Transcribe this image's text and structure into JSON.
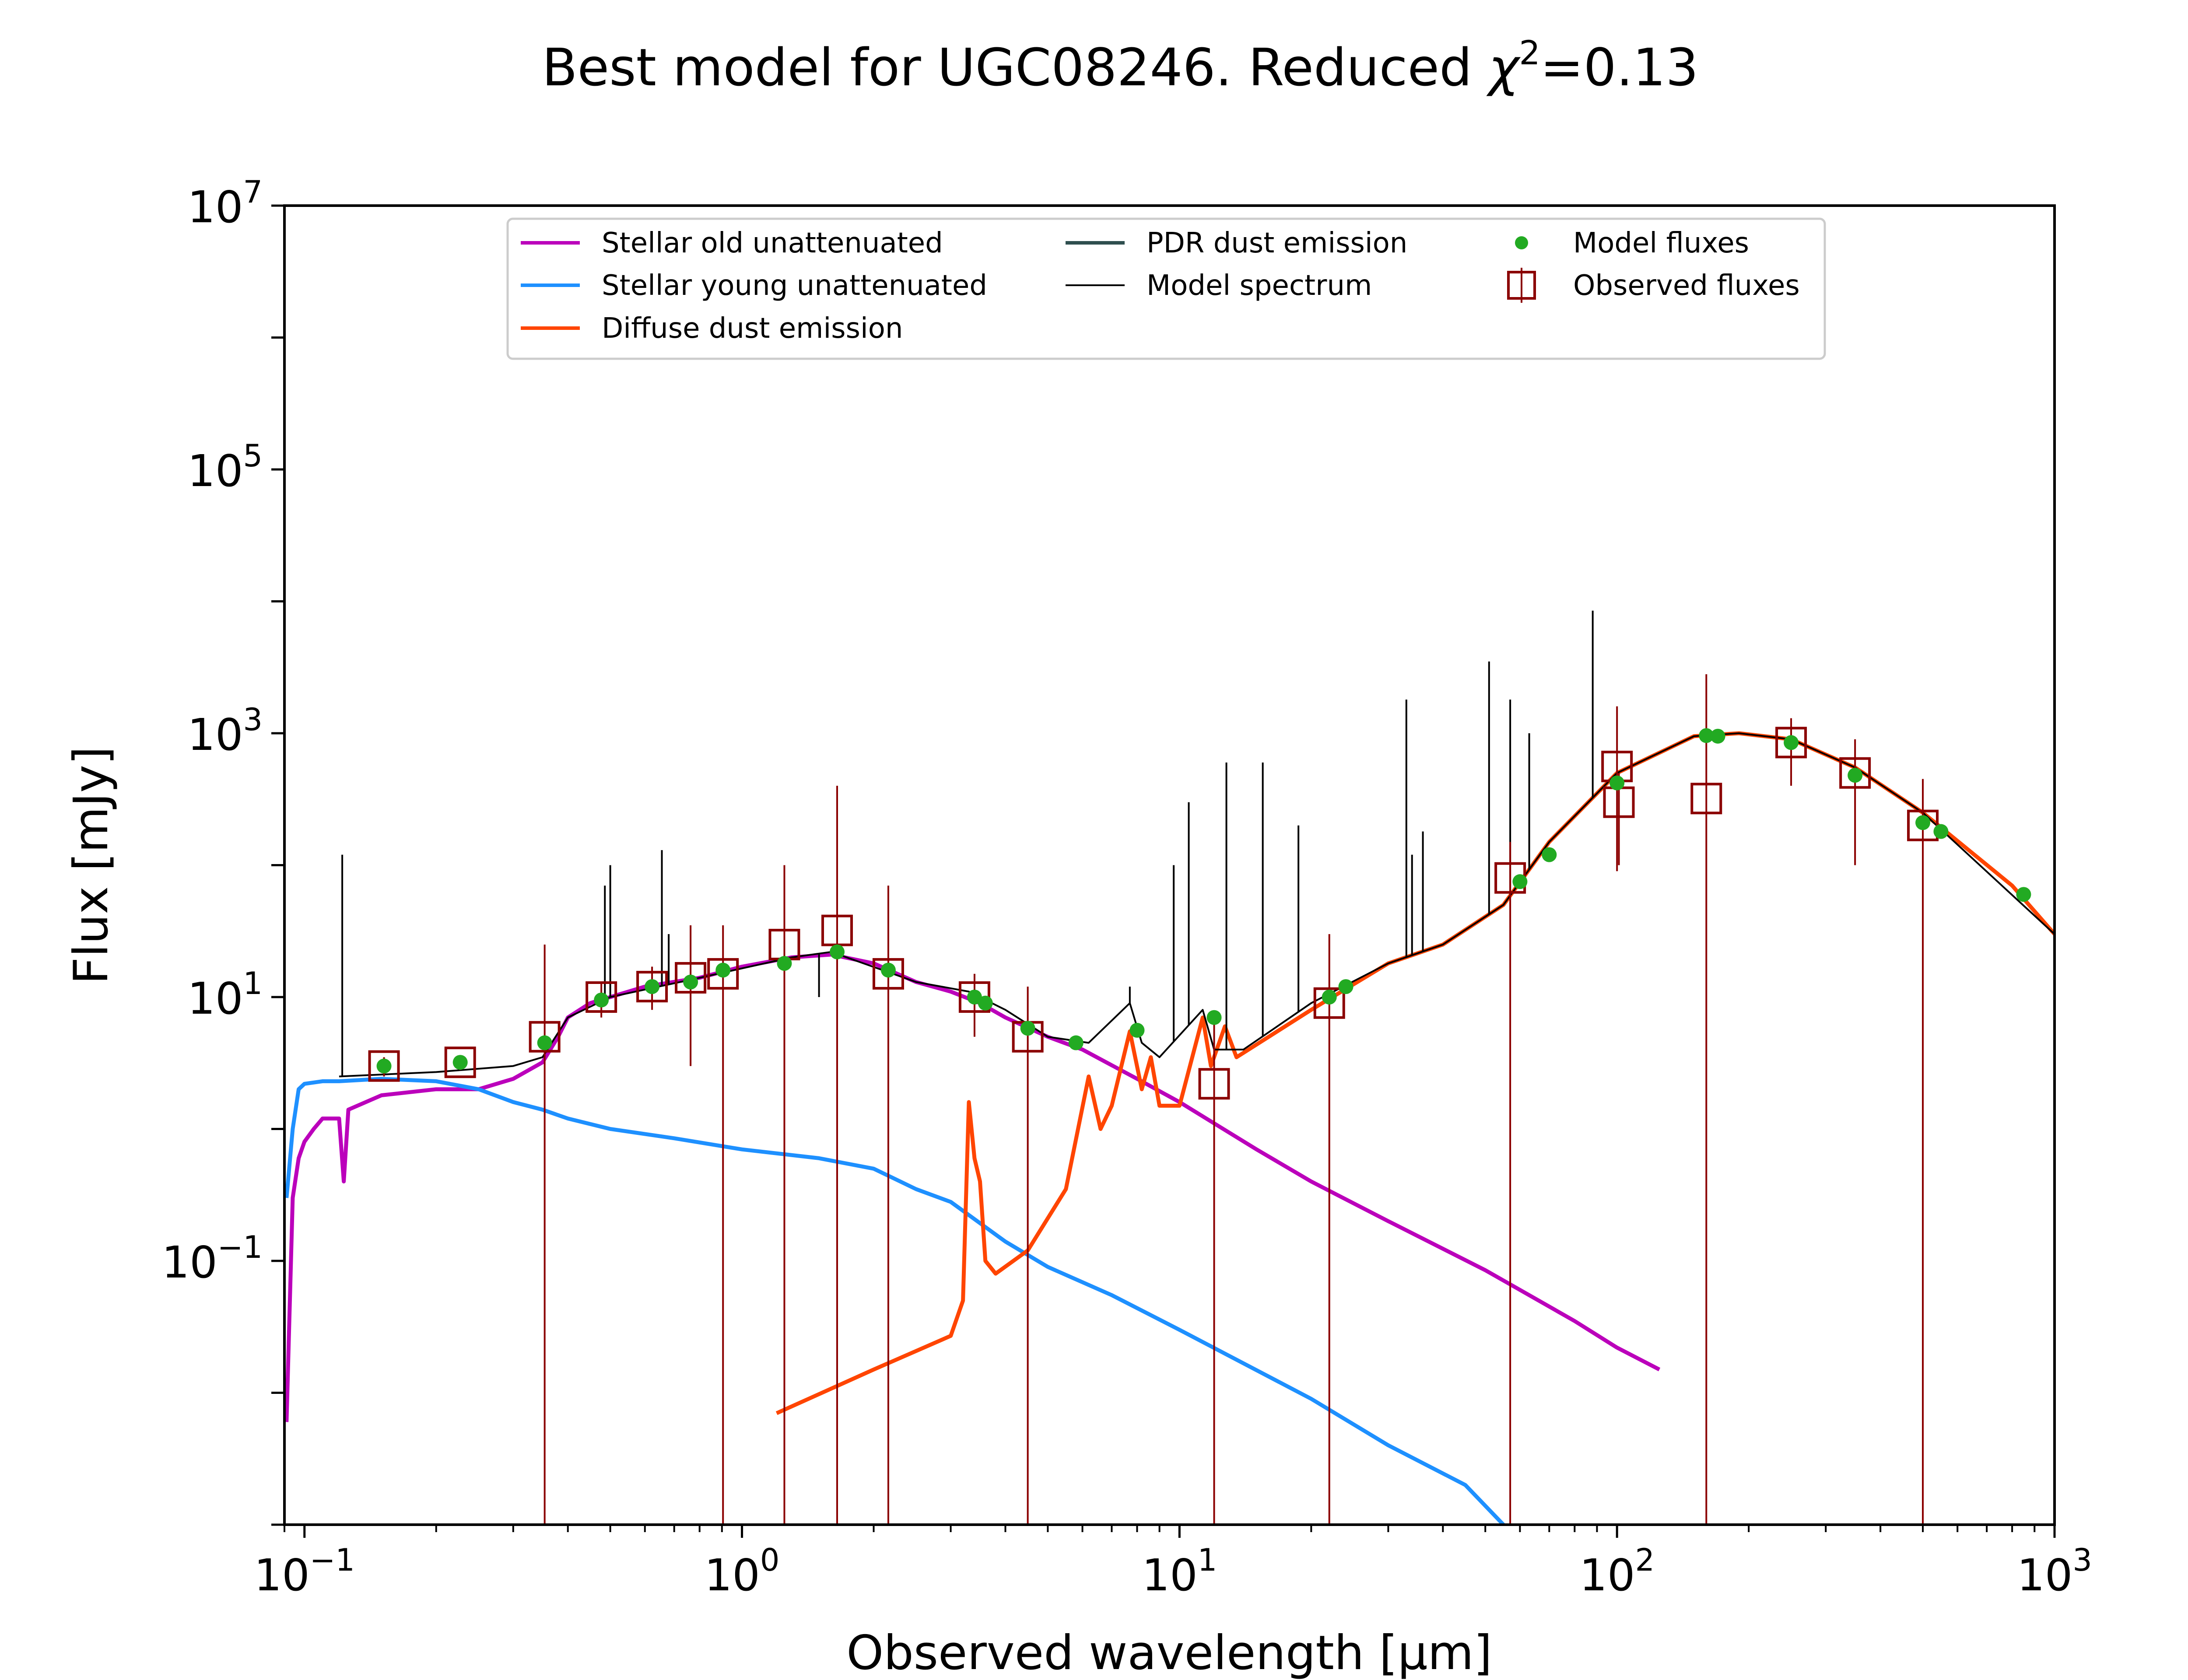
{
  "title": {
    "main": "Best model for UGC08246. Reduced ",
    "chi": "χ",
    "sup": "2",
    "value": "=0.13"
  },
  "chart_data": {
    "type": "line",
    "title": "Best model for UGC08246. Reduced χ²=0.13",
    "xlabel": "Observed wavelength [μm]",
    "ylabel": "Flux [mJy]",
    "x_scale": "log",
    "y_scale": "log",
    "xlim": [
      0.09,
      1000
    ],
    "ylim": [
      0.001,
      10000000
    ],
    "x_ticks": [
      {
        "base": "10",
        "exp": "−1"
      },
      {
        "base": "10",
        "exp": "0"
      },
      {
        "base": "10",
        "exp": "1"
      },
      {
        "base": "10",
        "exp": "2"
      },
      {
        "base": "10",
        "exp": "3"
      }
    ],
    "y_ticks": [
      {
        "base": "10",
        "exp": "−1",
        "value": 0.1
      },
      {
        "base": "10",
        "exp": "1",
        "value": 10
      },
      {
        "base": "10",
        "exp": "3",
        "value": 1000
      },
      {
        "base": "10",
        "exp": "5",
        "value": 100000
      },
      {
        "base": "10",
        "exp": "7",
        "value": 10000000
      }
    ],
    "grid": false,
    "legend_position": "top-center",
    "legend": [
      {
        "label": "Stellar old unattenuated",
        "kind": "line",
        "color": "#bb00bb"
      },
      {
        "label": "Stellar young unattenuated",
        "kind": "line",
        "color": "#1e90ff"
      },
      {
        "label": "Diffuse dust emission",
        "kind": "line",
        "color": "#ff4500"
      },
      {
        "label": "PDR dust emission",
        "kind": "line",
        "color": "#2f4f4f"
      },
      {
        "label": "Model spectrum",
        "kind": "thinline",
        "color": "#000000"
      },
      {
        "label": "Model fluxes",
        "kind": "dot",
        "color": "#22aa22"
      },
      {
        "label": "Observed fluxes",
        "kind": "square",
        "color": "#8b0000"
      }
    ],
    "series": [
      {
        "name": "Stellar old unattenuated",
        "color": "#bb00bb",
        "points": [
          [
            0.091,
            0.006
          ],
          [
            0.094,
            0.3
          ],
          [
            0.097,
            0.6
          ],
          [
            0.1,
            0.8
          ],
          [
            0.105,
            1.0
          ],
          [
            0.11,
            1.2
          ],
          [
            0.12,
            1.2
          ],
          [
            0.123,
            0.4
          ],
          [
            0.126,
            1.4
          ],
          [
            0.15,
            1.8
          ],
          [
            0.2,
            2.0
          ],
          [
            0.25,
            2.0
          ],
          [
            0.3,
            2.4
          ],
          [
            0.35,
            3.2
          ],
          [
            0.38,
            5
          ],
          [
            0.4,
            7
          ],
          [
            0.45,
            9
          ],
          [
            0.5,
            10
          ],
          [
            0.6,
            12
          ],
          [
            0.8,
            14
          ],
          [
            1.0,
            17
          ],
          [
            1.3,
            20
          ],
          [
            1.6,
            21
          ],
          [
            2.0,
            18
          ],
          [
            2.5,
            13
          ],
          [
            3.0,
            11
          ],
          [
            3.5,
            9
          ],
          [
            4.0,
            7
          ],
          [
            5,
            5
          ],
          [
            6,
            4
          ],
          [
            8,
            2.4
          ],
          [
            10,
            1.6
          ],
          [
            15,
            0.7
          ],
          [
            20,
            0.4
          ],
          [
            30,
            0.2
          ],
          [
            50,
            0.085
          ],
          [
            80,
            0.035
          ],
          [
            100,
            0.022
          ],
          [
            125,
            0.015
          ]
        ]
      },
      {
        "name": "Stellar young unattenuated",
        "color": "#1e90ff",
        "points": [
          [
            0.091,
            0.3
          ],
          [
            0.094,
            1.0
          ],
          [
            0.097,
            2.0
          ],
          [
            0.1,
            2.2
          ],
          [
            0.11,
            2.3
          ],
          [
            0.12,
            2.3
          ],
          [
            0.15,
            2.4
          ],
          [
            0.2,
            2.3
          ],
          [
            0.25,
            2.0
          ],
          [
            0.3,
            1.6
          ],
          [
            0.35,
            1.4
          ],
          [
            0.4,
            1.2
          ],
          [
            0.5,
            1.0
          ],
          [
            0.7,
            0.85
          ],
          [
            1.0,
            0.7
          ],
          [
            1.5,
            0.6
          ],
          [
            2.0,
            0.5
          ],
          [
            2.5,
            0.35
          ],
          [
            3.0,
            0.28
          ],
          [
            4.0,
            0.14
          ],
          [
            5,
            0.09
          ],
          [
            7,
            0.055
          ],
          [
            10,
            0.03
          ],
          [
            20,
            0.009
          ],
          [
            30,
            0.004
          ],
          [
            45,
            0.002
          ],
          [
            55,
            0.001
          ]
        ]
      },
      {
        "name": "Diffuse dust emission",
        "color": "#ff4500",
        "points": [
          [
            1.2,
            0.007
          ],
          [
            2,
            0.015
          ],
          [
            3,
            0.027
          ],
          [
            3.2,
            0.05
          ],
          [
            3.3,
            1.6
          ],
          [
            3.4,
            0.6
          ],
          [
            3.5,
            0.4
          ],
          [
            3.6,
            0.1
          ],
          [
            3.8,
            0.08
          ],
          [
            4.5,
            0.12
          ],
          [
            5.5,
            0.35
          ],
          [
            6.2,
            2.5
          ],
          [
            6.6,
            1.0
          ],
          [
            7.0,
            1.5
          ],
          [
            7.7,
            5.5
          ],
          [
            8.2,
            2.0
          ],
          [
            8.6,
            3.5
          ],
          [
            9,
            1.5
          ],
          [
            10,
            1.5
          ],
          [
            11.3,
            7
          ],
          [
            11.8,
            3
          ],
          [
            12.7,
            6
          ],
          [
            13.5,
            3.5
          ],
          [
            20,
            8
          ],
          [
            30,
            18
          ],
          [
            40,
            25
          ],
          [
            55,
            50
          ],
          [
            70,
            150
          ],
          [
            100,
            500
          ],
          [
            150,
            950
          ],
          [
            190,
            1000
          ],
          [
            250,
            900
          ],
          [
            350,
            550
          ],
          [
            500,
            250
          ],
          [
            800,
            70
          ],
          [
            1000,
            30
          ]
        ]
      },
      {
        "name": "Model spectrum",
        "color": "#000000",
        "points": [
          [
            0.12,
            2.5
          ],
          [
            0.2,
            2.7
          ],
          [
            0.3,
            3.0
          ],
          [
            0.35,
            3.5
          ],
          [
            0.4,
            7
          ],
          [
            0.5,
            10
          ],
          [
            0.8,
            14
          ],
          [
            1.3,
            20
          ],
          [
            1.6,
            22
          ],
          [
            2.5,
            13
          ],
          [
            3.3,
            11
          ],
          [
            4,
            8
          ],
          [
            5,
            5
          ],
          [
            6.2,
            4.5
          ],
          [
            7.7,
            9
          ],
          [
            8.2,
            4.5
          ],
          [
            9,
            3.5
          ],
          [
            11.3,
            8
          ],
          [
            12,
            4
          ],
          [
            14,
            4
          ],
          [
            20,
            9
          ],
          [
            30,
            18
          ],
          [
            40,
            25
          ],
          [
            55,
            50
          ],
          [
            70,
            150
          ],
          [
            100,
            500
          ],
          [
            150,
            950
          ],
          [
            190,
            1000
          ],
          [
            250,
            900
          ],
          [
            350,
            550
          ],
          [
            500,
            250
          ],
          [
            1000,
            30
          ]
        ],
        "emission_lines": [
          [
            0.122,
            120
          ],
          [
            0.486,
            70
          ],
          [
            0.5,
            100
          ],
          [
            0.656,
            130
          ],
          [
            0.68,
            30
          ],
          [
            1.5,
            10
          ],
          [
            7.7,
            12
          ],
          [
            9.7,
            100
          ],
          [
            10.5,
            300
          ],
          [
            12.8,
            600
          ],
          [
            15.5,
            600
          ],
          [
            18.7,
            200
          ],
          [
            33,
            1800
          ],
          [
            34,
            120
          ],
          [
            36,
            180
          ],
          [
            51,
            3500
          ],
          [
            57,
            1800
          ],
          [
            88,
            8500
          ],
          [
            63,
            1000
          ]
        ]
      }
    ],
    "model_fluxes": [
      [
        0.152,
        3
      ],
      [
        0.227,
        3.2
      ],
      [
        0.354,
        4.5
      ],
      [
        0.477,
        9.5
      ],
      [
        0.623,
        12
      ],
      [
        0.763,
        13
      ],
      [
        0.905,
        16
      ],
      [
        1.25,
        18
      ],
      [
        1.65,
        22
      ],
      [
        2.16,
        16
      ],
      [
        3.4,
        10
      ],
      [
        3.6,
        9
      ],
      [
        4.5,
        5.8
      ],
      [
        5.8,
        4.5
      ],
      [
        8.0,
        5.6
      ],
      [
        12,
        7
      ],
      [
        22,
        10
      ],
      [
        24,
        12
      ],
      [
        60,
        75
      ],
      [
        70,
        120
      ],
      [
        100,
        420
      ],
      [
        160,
        960
      ],
      [
        170,
        950
      ],
      [
        250,
        850
      ],
      [
        350,
        480
      ],
      [
        500,
        210
      ],
      [
        550,
        180
      ],
      [
        850,
        60
      ]
    ],
    "observed_fluxes": [
      {
        "x": 0.152,
        "y": 3.0,
        "err_low": 2.5,
        "err_high": 3.5
      },
      {
        "x": 0.227,
        "y": 3.2,
        "err_low": 2.8,
        "err_high": 3.6
      },
      {
        "x": 0.354,
        "y": 5.0,
        "err_low": 0.001,
        "err_high": 25
      },
      {
        "x": 0.477,
        "y": 10,
        "err_low": 7,
        "err_high": 13
      },
      {
        "x": 0.623,
        "y": 12,
        "err_low": 8,
        "err_high": 17
      },
      {
        "x": 0.763,
        "y": 14,
        "err_low": 3,
        "err_high": 35
      },
      {
        "x": 0.905,
        "y": 15,
        "err_low": 0.001,
        "err_high": 35
      },
      {
        "x": 1.25,
        "y": 25,
        "err_low": 0.001,
        "err_high": 100
      },
      {
        "x": 1.65,
        "y": 32,
        "err_low": 0.001,
        "err_high": 400
      },
      {
        "x": 2.16,
        "y": 15,
        "err_low": 0.001,
        "err_high": 70
      },
      {
        "x": 3.4,
        "y": 10,
        "err_low": 5,
        "err_high": 15
      },
      {
        "x": 4.5,
        "y": 5,
        "err_low": 0.001,
        "err_high": 12
      },
      {
        "x": 12,
        "y": 2.2,
        "err_low": 0.001,
        "err_high": 7
      },
      {
        "x": 22,
        "y": 9,
        "err_low": 0.001,
        "err_high": 30
      },
      {
        "x": 57,
        "y": 80,
        "err_low": 0.001,
        "err_high": 150
      },
      {
        "x": 100,
        "y": 560,
        "err_low": 90,
        "err_high": 1600
      },
      {
        "x": 101,
        "y": 300,
        "err_low": 100,
        "err_high": 500
      },
      {
        "x": 160,
        "y": 320,
        "err_low": 0.001,
        "err_high": 2800
      },
      {
        "x": 250,
        "y": 850,
        "err_low": 400,
        "err_high": 1300
      },
      {
        "x": 350,
        "y": 500,
        "err_low": 100,
        "err_high": 900
      },
      {
        "x": 500,
        "y": 200,
        "err_low": 0.001,
        "err_high": 450
      }
    ]
  }
}
